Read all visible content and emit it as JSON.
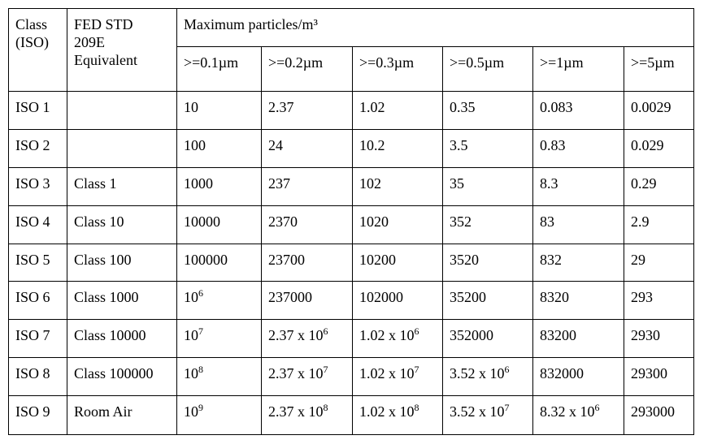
{
  "table": {
    "header": {
      "class": "Class (ISO)",
      "fed": "FED STD 209E Equivalent",
      "max": "Maximum particles/m³",
      "sizes": [
        ">=0.1µm",
        ">=0.2µm",
        ">=0.3µm",
        ">=0.5µm",
        ">=1µm",
        ">=5µm"
      ]
    },
    "rows": [
      [
        "ISO 1",
        null,
        "10",
        "2.37",
        "1.02",
        "0.35",
        "0.083",
        "0.0029"
      ],
      [
        "ISO 2",
        null,
        "100",
        "24",
        "10.2",
        "3.5",
        "0.83",
        "0.029"
      ],
      [
        "ISO 3",
        "Class 1",
        "1000",
        "237",
        "102",
        "35",
        "8.3",
        "0.29"
      ],
      [
        "ISO 4",
        "Class 10",
        "10000",
        "2370",
        "1020",
        "352",
        "83",
        "2.9"
      ],
      [
        "ISO 5",
        "Class 100",
        "100000",
        "23700",
        "10200",
        "3520",
        "832",
        "29"
      ],
      [
        "ISO 6",
        "Class 1000",
        {
          "text": "10",
          "sup": "6"
        },
        "237000",
        "102000",
        "35200",
        "8320",
        "293"
      ],
      [
        "ISO 7",
        "Class 10000",
        {
          "text": "10",
          "sup": "7"
        },
        {
          "text": "2.37 x 10",
          "sup": "6"
        },
        {
          "text": "1.02 x 10",
          "sup": "6"
        },
        "352000",
        "83200",
        "2930"
      ],
      [
        "ISO 8",
        "Class 100000",
        {
          "text": "10",
          "sup": "8"
        },
        {
          "text": "2.37 x 10",
          "sup": "7"
        },
        {
          "text": "1.02 x 10",
          "sup": "7"
        },
        {
          "text": "3.52 x 10",
          "sup": "6"
        },
        "832000",
        "29300"
      ],
      [
        "ISO 9",
        "Room Air",
        {
          "text": "10",
          "sup": "9"
        },
        {
          "text": "2.37 x 10",
          "sup": "8"
        },
        {
          "text": "1.02 x 10",
          "sup": "8"
        },
        {
          "text": "3.52 x 10",
          "sup": "7"
        },
        {
          "text": "8.32 x 10",
          "sup": "6"
        },
        "293000"
      ]
    ]
  }
}
